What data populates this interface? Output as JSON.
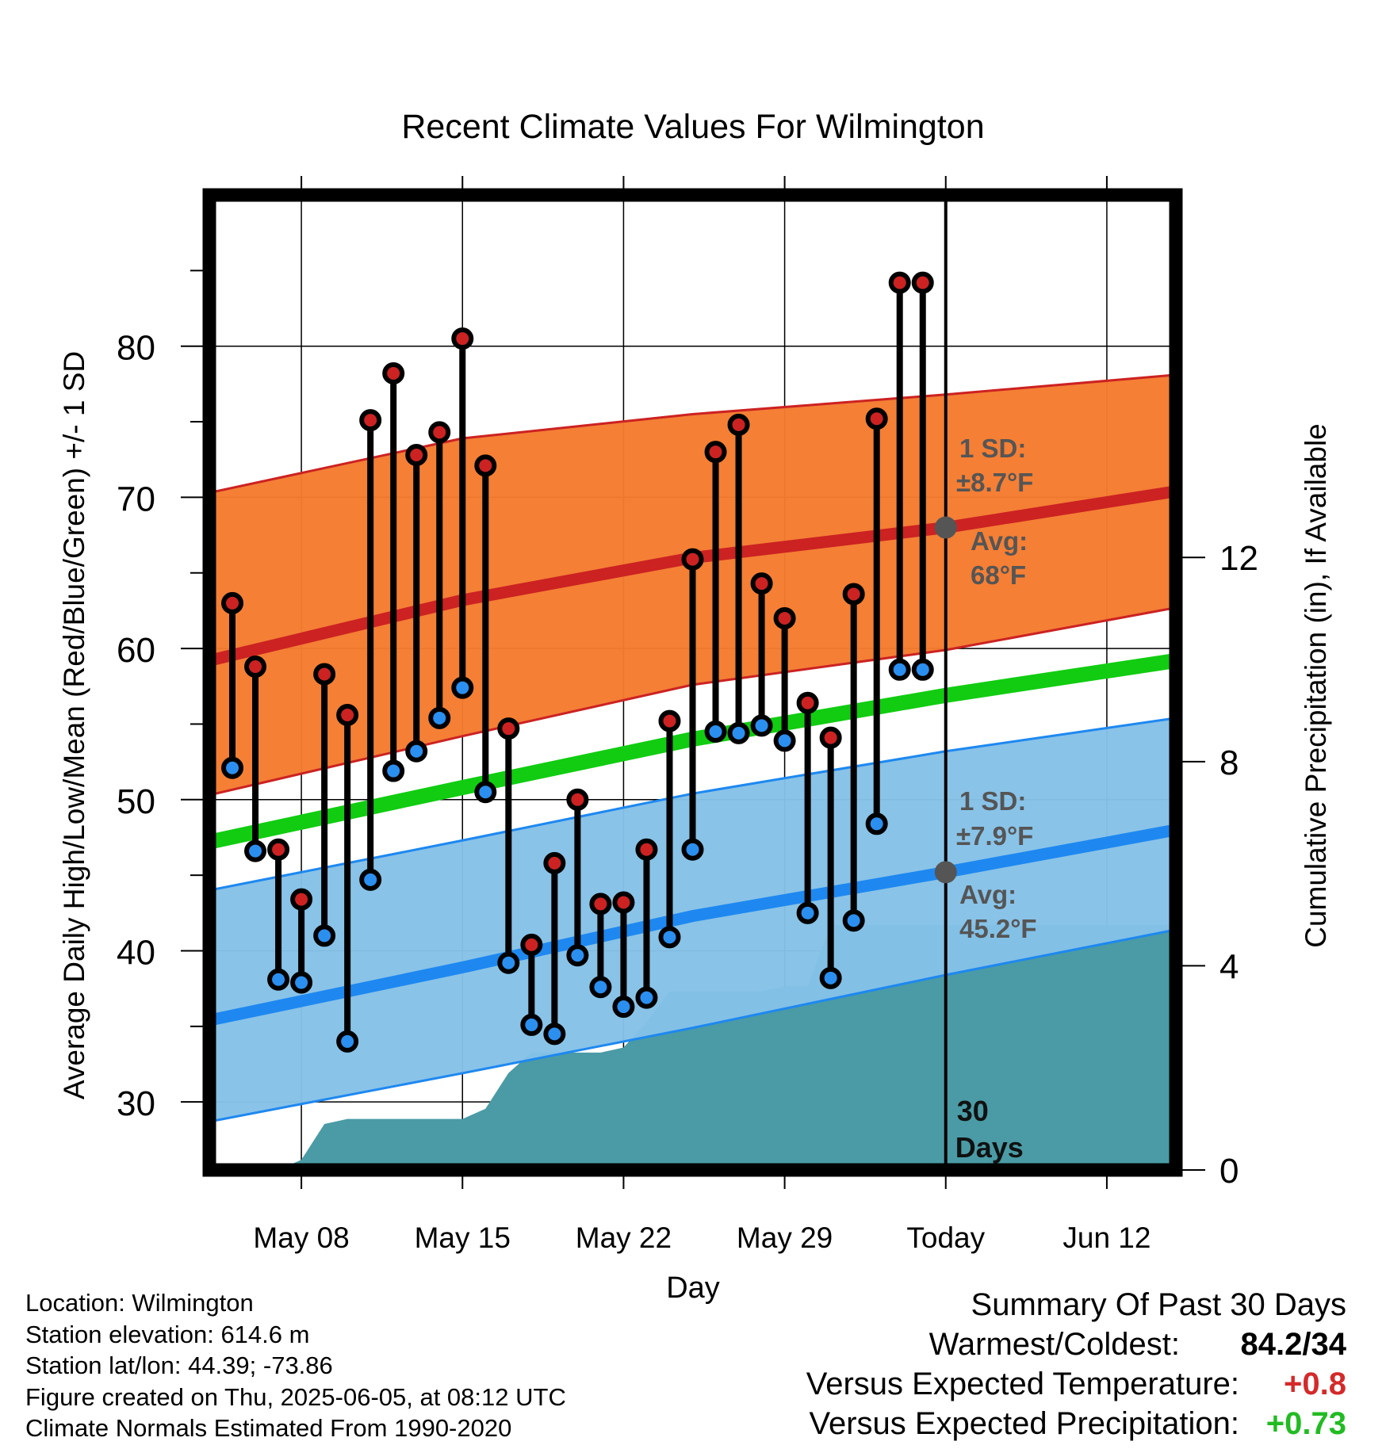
{
  "chart_data": {
    "type": "line",
    "title": "Recent Climate Values For Wilmington",
    "xlabel": "Day",
    "ylabel": "Average Daily High/Low/Mean (Red/Blue/Green) +/- 1 SD",
    "y2label": "Cumulative Precipitation (in), If Available",
    "ylim": [
      25.5,
      90
    ],
    "y2lim": [
      0,
      19.1
    ],
    "xlim": [
      "2025-05-04",
      "2025-06-15"
    ],
    "yticks": [
      30,
      40,
      50,
      60,
      70,
      80
    ],
    "y2ticks": [
      0,
      4,
      8,
      12
    ],
    "xticks": [
      {
        "date": "2025-05-08",
        "label": "May 08"
      },
      {
        "date": "2025-05-15",
        "label": "May 15"
      },
      {
        "date": "2025-05-22",
        "label": "May 22"
      },
      {
        "date": "2025-05-29",
        "label": "May 29"
      },
      {
        "date": "2025-06-05",
        "label": "Today"
      },
      {
        "date": "2025-06-12",
        "label": "Jun 12"
      }
    ],
    "grid": true,
    "today": "2025-06-05",
    "today_label": [
      "30",
      "Days"
    ],
    "normals": {
      "dates": [
        "2025-05-04",
        "2025-05-15",
        "2025-05-25",
        "2025-06-05",
        "2025-06-15"
      ],
      "high_mean": [
        59.2,
        63.2,
        66.0,
        68.0,
        70.4
      ],
      "high_upper": [
        70.3,
        73.9,
        75.5,
        76.8,
        78.1
      ],
      "high_lower": [
        50.3,
        54.2,
        57.6,
        59.9,
        62.7
      ],
      "mean": [
        47.2,
        50.8,
        54.0,
        56.9,
        59.2
      ],
      "low_mean": [
        35.4,
        38.9,
        42.3,
        45.2,
        48.0
      ],
      "low_upper": [
        44.0,
        47.3,
        50.4,
        53.2,
        55.4
      ],
      "low_lower": [
        28.7,
        31.9,
        34.9,
        38.4,
        41.4
      ]
    },
    "series": [
      {
        "name": "High",
        "color": "#cc2222",
        "dates": [
          "2025-05-05",
          "2025-05-06",
          "2025-05-07",
          "2025-05-08",
          "2025-05-09",
          "2025-05-10",
          "2025-05-11",
          "2025-05-12",
          "2025-05-13",
          "2025-05-14",
          "2025-05-15",
          "2025-05-16",
          "2025-05-17",
          "2025-05-18",
          "2025-05-19",
          "2025-05-20",
          "2025-05-21",
          "2025-05-22",
          "2025-05-23",
          "2025-05-24",
          "2025-05-25",
          "2025-05-26",
          "2025-05-27",
          "2025-05-28",
          "2025-05-29",
          "2025-05-30",
          "2025-05-31",
          "2025-06-01",
          "2025-06-02",
          "2025-06-03",
          "2025-06-04"
        ],
        "values": [
          63.0,
          58.8,
          46.7,
          43.4,
          58.3,
          55.6,
          75.1,
          78.2,
          72.8,
          74.3,
          80.5,
          72.1,
          54.7,
          40.4,
          45.8,
          50.0,
          43.1,
          43.2,
          46.7,
          55.2,
          65.9,
          73.0,
          74.8,
          64.3,
          62.0,
          56.4,
          54.1,
          63.6,
          75.2,
          84.2,
          84.2
        ]
      },
      {
        "name": "Low",
        "color": "#2b8ff0",
        "dates": [
          "2025-05-05",
          "2025-05-06",
          "2025-05-07",
          "2025-05-08",
          "2025-05-09",
          "2025-05-10",
          "2025-05-11",
          "2025-05-12",
          "2025-05-13",
          "2025-05-14",
          "2025-05-15",
          "2025-05-16",
          "2025-05-17",
          "2025-05-18",
          "2025-05-19",
          "2025-05-20",
          "2025-05-21",
          "2025-05-22",
          "2025-05-23",
          "2025-05-24",
          "2025-05-25",
          "2025-05-26",
          "2025-05-27",
          "2025-05-28",
          "2025-05-29",
          "2025-05-30",
          "2025-05-31",
          "2025-06-01",
          "2025-06-02",
          "2025-06-03",
          "2025-06-04"
        ],
        "values": [
          52.1,
          46.6,
          38.1,
          37.9,
          41.0,
          34.0,
          44.7,
          51.9,
          53.2,
          55.4,
          57.4,
          50.5,
          39.2,
          35.1,
          34.5,
          39.7,
          37.6,
          36.3,
          36.9,
          40.9,
          46.7,
          54.5,
          54.4,
          54.9,
          53.9,
          42.5,
          38.2,
          42.0,
          48.4,
          58.6,
          58.6
        ]
      }
    ],
    "precipitation": {
      "dates": [
        "2025-05-05",
        "2025-05-06",
        "2025-05-07",
        "2025-05-08",
        "2025-05-09",
        "2025-05-10",
        "2025-05-11",
        "2025-05-12",
        "2025-05-13",
        "2025-05-14",
        "2025-05-15",
        "2025-05-16",
        "2025-05-17",
        "2025-05-18",
        "2025-05-19",
        "2025-05-20",
        "2025-05-21",
        "2025-05-22",
        "2025-05-23",
        "2025-05-24",
        "2025-05-25",
        "2025-05-26",
        "2025-05-27",
        "2025-05-28",
        "2025-05-29",
        "2025-05-30",
        "2025-05-31",
        "2025-06-01",
        "2025-06-15"
      ],
      "values": [
        0.0,
        0.0,
        0.0,
        0.2,
        0.9,
        1.0,
        1.0,
        1.0,
        1.0,
        1.0,
        1.0,
        1.2,
        1.9,
        2.3,
        2.3,
        2.3,
        2.3,
        2.4,
        2.9,
        3.5,
        3.5,
        3.5,
        3.5,
        3.5,
        3.6,
        3.6,
        4.8,
        4.8,
        4.8
      ],
      "color": "#4a9ba5"
    },
    "annotations": {
      "high_sd": [
        "1 SD:",
        "±8.7°F"
      ],
      "high_avg": [
        "Avg:",
        "68°F"
      ],
      "low_sd": [
        "1 SD:",
        "±7.9°F"
      ],
      "low_avg": [
        "Avg:",
        "45.2°F"
      ]
    },
    "colors": {
      "high_band": "#f47b2e",
      "high_line": "#cc2222",
      "mean_line": "#11cc11",
      "low_band": "#85c1e7",
      "low_line": "#1e88f0",
      "precip": "#4a9ba5",
      "annotation": "#555555"
    }
  },
  "footer": {
    "location": "Location: Wilmington",
    "elevation": "Station elevation: 614.6 m",
    "latlon": "Station lat/lon: 44.39; -73.86",
    "created": "Figure created on Thu, 2025-06-05, at 08:12 UTC",
    "normals": "Climate Normals Estimated From 1990-2020"
  },
  "summary": {
    "title": "Summary Of Past 30 Days",
    "warm_cold_label": "Warmest/Coldest:",
    "warm_cold_value": "84.2/34",
    "temp_label": "Versus Expected Temperature:",
    "temp_value": "+0.8",
    "temp_color": "#d42a2a",
    "precip_label": "Versus Expected Precipitation:",
    "precip_value": "+0.73",
    "precip_color": "#22bb22"
  }
}
